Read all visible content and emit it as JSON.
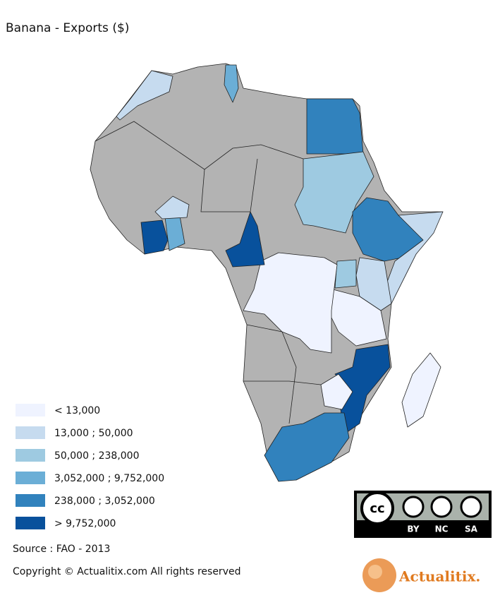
{
  "header": {
    "title": "Banana - Exports ($)"
  },
  "legend": {
    "items": [
      {
        "label": "< 13,000",
        "color": "#eff3ff"
      },
      {
        "label": "13,000 ; 50,000",
        "color": "#c6dbef"
      },
      {
        "label": "50,000 ; 238,000",
        "color": "#9ecae1"
      },
      {
        "label": "3,052,000 ; 9,752,000",
        "color": "#6baed6"
      },
      {
        "label": "238,000 ; 3,052,000",
        "color": "#3182bd"
      },
      {
        "label": "> 9,752,000",
        "color": "#08519c"
      }
    ]
  },
  "footer": {
    "source": "Source : FAO - 2013",
    "copyright": "Copyright © Actualitix.com All rights reserved"
  },
  "license": {
    "by": "BY",
    "nc": "NC",
    "sa": "SA"
  },
  "logo": {
    "text": "Actualitix."
  }
}
